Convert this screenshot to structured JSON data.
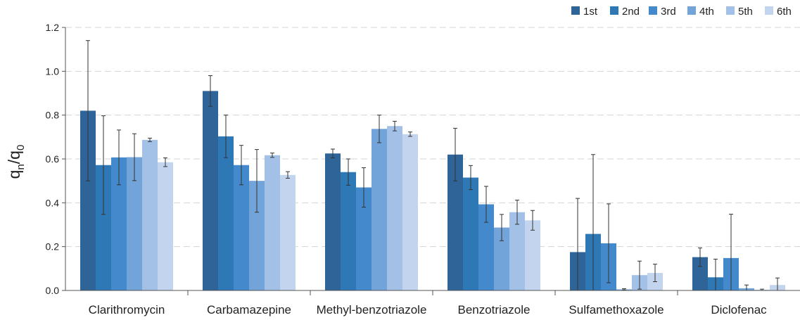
{
  "chart_data": {
    "type": "bar",
    "title": "",
    "xlabel": "",
    "ylabel": {
      "base": "q",
      "sub_n": "n",
      "slash": "/",
      "base2": "q",
      "sub_0": "0"
    },
    "ylim": [
      0,
      1.2
    ],
    "yticks": [
      "0.0",
      "0.2",
      "0.4",
      "0.6",
      "0.8",
      "1.0",
      "1.2"
    ],
    "ytick_values": [
      0,
      0.2,
      0.4,
      0.6,
      0.8,
      1.0,
      1.2
    ],
    "grid": true,
    "legend_position": "top-right",
    "categories": [
      "Clarithromycin",
      "Carbamazepine",
      "Methyl-benzotriazole",
      "Benzotriazole",
      "Sulfamethoxazole",
      "Diclofenac"
    ],
    "series": [
      {
        "name": "1st",
        "color": "#2e6498",
        "values": [
          0.82,
          0.91,
          0.625,
          0.62,
          0.175,
          0.152
        ],
        "errors": [
          0.32,
          0.07,
          0.02,
          0.12,
          0.245,
          0.042
        ]
      },
      {
        "name": "2nd",
        "color": "#2f78b6",
        "values": [
          0.572,
          0.703,
          0.54,
          0.515,
          0.258,
          0.06
        ],
        "errors": [
          0.225,
          0.097,
          0.06,
          0.055,
          0.362,
          0.083
        ]
      },
      {
        "name": "3rd",
        "color": "#4489cb",
        "values": [
          0.607,
          0.572,
          0.47,
          0.393,
          0.215,
          0.148
        ],
        "errors": [
          0.125,
          0.09,
          0.09,
          0.082,
          0.18,
          0.2
        ]
      },
      {
        "name": "4th",
        "color": "#72a3d9",
        "values": [
          0.608,
          0.5,
          0.737,
          0.287,
          0.005,
          0.01
        ],
        "errors": [
          0.107,
          0.143,
          0.063,
          0.06,
          0.003,
          0.015
        ]
      },
      {
        "name": "5th",
        "color": "#a3c0e6",
        "values": [
          0.687,
          0.617,
          0.75,
          0.357,
          0.07,
          0.003
        ],
        "errors": [
          0.008,
          0.01,
          0.022,
          0.055,
          0.064,
          0.003
        ]
      },
      {
        "name": "6th",
        "color": "#c3d5ee",
        "values": [
          0.585,
          0.527,
          0.713,
          0.32,
          0.08,
          0.025
        ],
        "errors": [
          0.02,
          0.015,
          0.01,
          0.045,
          0.04,
          0.032
        ]
      }
    ]
  }
}
